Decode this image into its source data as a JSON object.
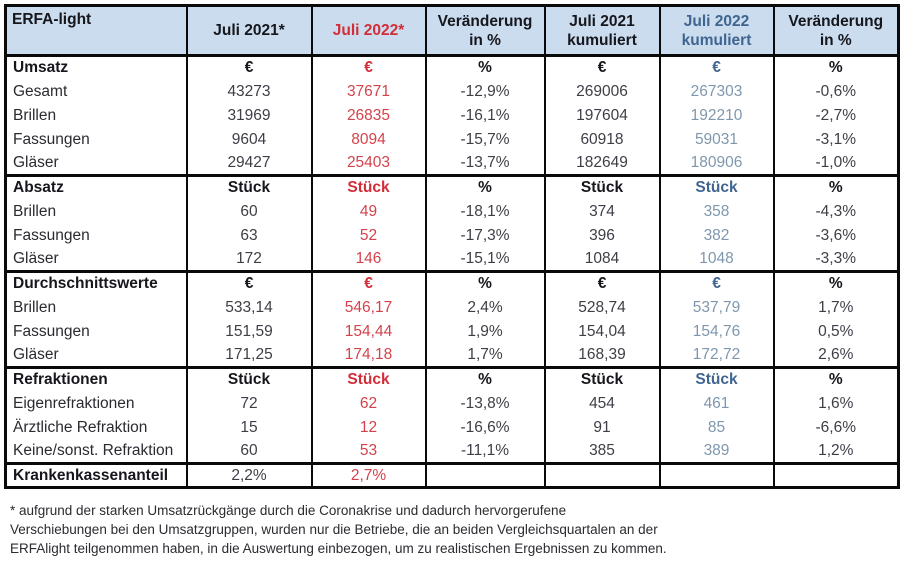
{
  "colors": {
    "header_bg": "#cadcee",
    "border": "#0a0a0a",
    "red_header": "#d22e3a",
    "red_value": "#d4434c",
    "blue_header": "#3f6590",
    "blue_value": "#7f97ae",
    "dark_text": "#16161d"
  },
  "table": {
    "header_cells": [
      {
        "l1": "ERFA-light",
        "l2": "",
        "tone": "dark"
      },
      {
        "l1": "Juli 2021*",
        "l2": "",
        "tone": "dark"
      },
      {
        "l1": "Juli 2022*",
        "l2": "",
        "tone": "red"
      },
      {
        "l1": "Veränderung",
        "l2": "in %",
        "tone": "dark"
      },
      {
        "l1": "Juli 2021",
        "l2": "kumuliert",
        "tone": "dark"
      },
      {
        "l1": "Juli 2022",
        "l2": "kumuliert",
        "tone": "blue"
      },
      {
        "l1": "Veränderung",
        "l2": "in %",
        "tone": "dark"
      }
    ],
    "value_tones": [
      "dark",
      "red",
      "dark",
      "dark",
      "blue",
      "dark"
    ],
    "sections": [
      {
        "label": "Umsatz",
        "units": [
          "€",
          "€",
          "%",
          "€",
          "€",
          "%"
        ],
        "rows": [
          [
            "Gesamt",
            "43273",
            "37671",
            "-12,9%",
            "269006",
            "267303",
            "-0,6%"
          ],
          [
            "Brillen",
            "31969",
            "26835",
            "-16,1%",
            "197604",
            "192210",
            "-2,7%"
          ],
          [
            "Fassungen",
            "9604",
            "8094",
            "-15,7%",
            "60918",
            "59031",
            "-3,1%"
          ],
          [
            "Gläser",
            "29427",
            "25403",
            "-13,7%",
            "182649",
            "180906",
            "-1,0%"
          ]
        ]
      },
      {
        "label": "Absatz",
        "units": [
          "Stück",
          "Stück",
          "%",
          "Stück",
          "Stück",
          "%"
        ],
        "rows": [
          [
            "Brillen",
            "60",
            "49",
            "-18,1%",
            "374",
            "358",
            "-4,3%"
          ],
          [
            "Fassungen",
            "63",
            "52",
            "-17,3%",
            "396",
            "382",
            "-3,6%"
          ],
          [
            "Gläser",
            "172",
            "146",
            "-15,1%",
            "1084",
            "1048",
            "-3,3%"
          ]
        ]
      },
      {
        "label": "Durchschnittswerte",
        "units": [
          "€",
          "€",
          "%",
          "€",
          "€",
          "%"
        ],
        "rows": [
          [
            "Brillen",
            "533,14",
            "546,17",
            "2,4%",
            "528,74",
            "537,79",
            "1,7%"
          ],
          [
            "Fassungen",
            "151,59",
            "154,44",
            "1,9%",
            "154,04",
            "154,76",
            "0,5%"
          ],
          [
            "Gläser",
            "171,25",
            "174,18",
            "1,7%",
            "168,39",
            "172,72",
            "2,6%"
          ]
        ]
      },
      {
        "label": "Refraktionen",
        "units": [
          "Stück",
          "Stück",
          "%",
          "Stück",
          "Stück",
          "%"
        ],
        "rows": [
          [
            "Eigenrefraktionen",
            "72",
            "62",
            "-13,8%",
            "454",
            "461",
            "1,6%"
          ],
          [
            "Ärztliche Refraktion",
            "15",
            "12",
            "-16,6%",
            "91",
            "85",
            "-6,6%"
          ],
          [
            "Keine/sonst. Refraktion",
            "60",
            "53",
            "-11,1%",
            "385",
            "389",
            "1,2%"
          ]
        ]
      },
      {
        "label": "Krankenkassenanteil",
        "units": null,
        "inline_values": [
          "2,2%",
          "2,7%",
          "",
          "",
          "",
          ""
        ]
      }
    ]
  },
  "footnote": {
    "lines": [
      "* aufgrund der starken Umsatzrückgänge durch die Coronakrise und dadurch hervorgerufene",
      "Verschiebungen bei den Umsatzgruppen, wurden nur die Betriebe, die an beiden Vergleichsquartalen an der",
      "ERFAlight teilgenommen haben, in die Auswertung einbezogen, um zu realistischen Ergebnissen zu kommen."
    ]
  }
}
